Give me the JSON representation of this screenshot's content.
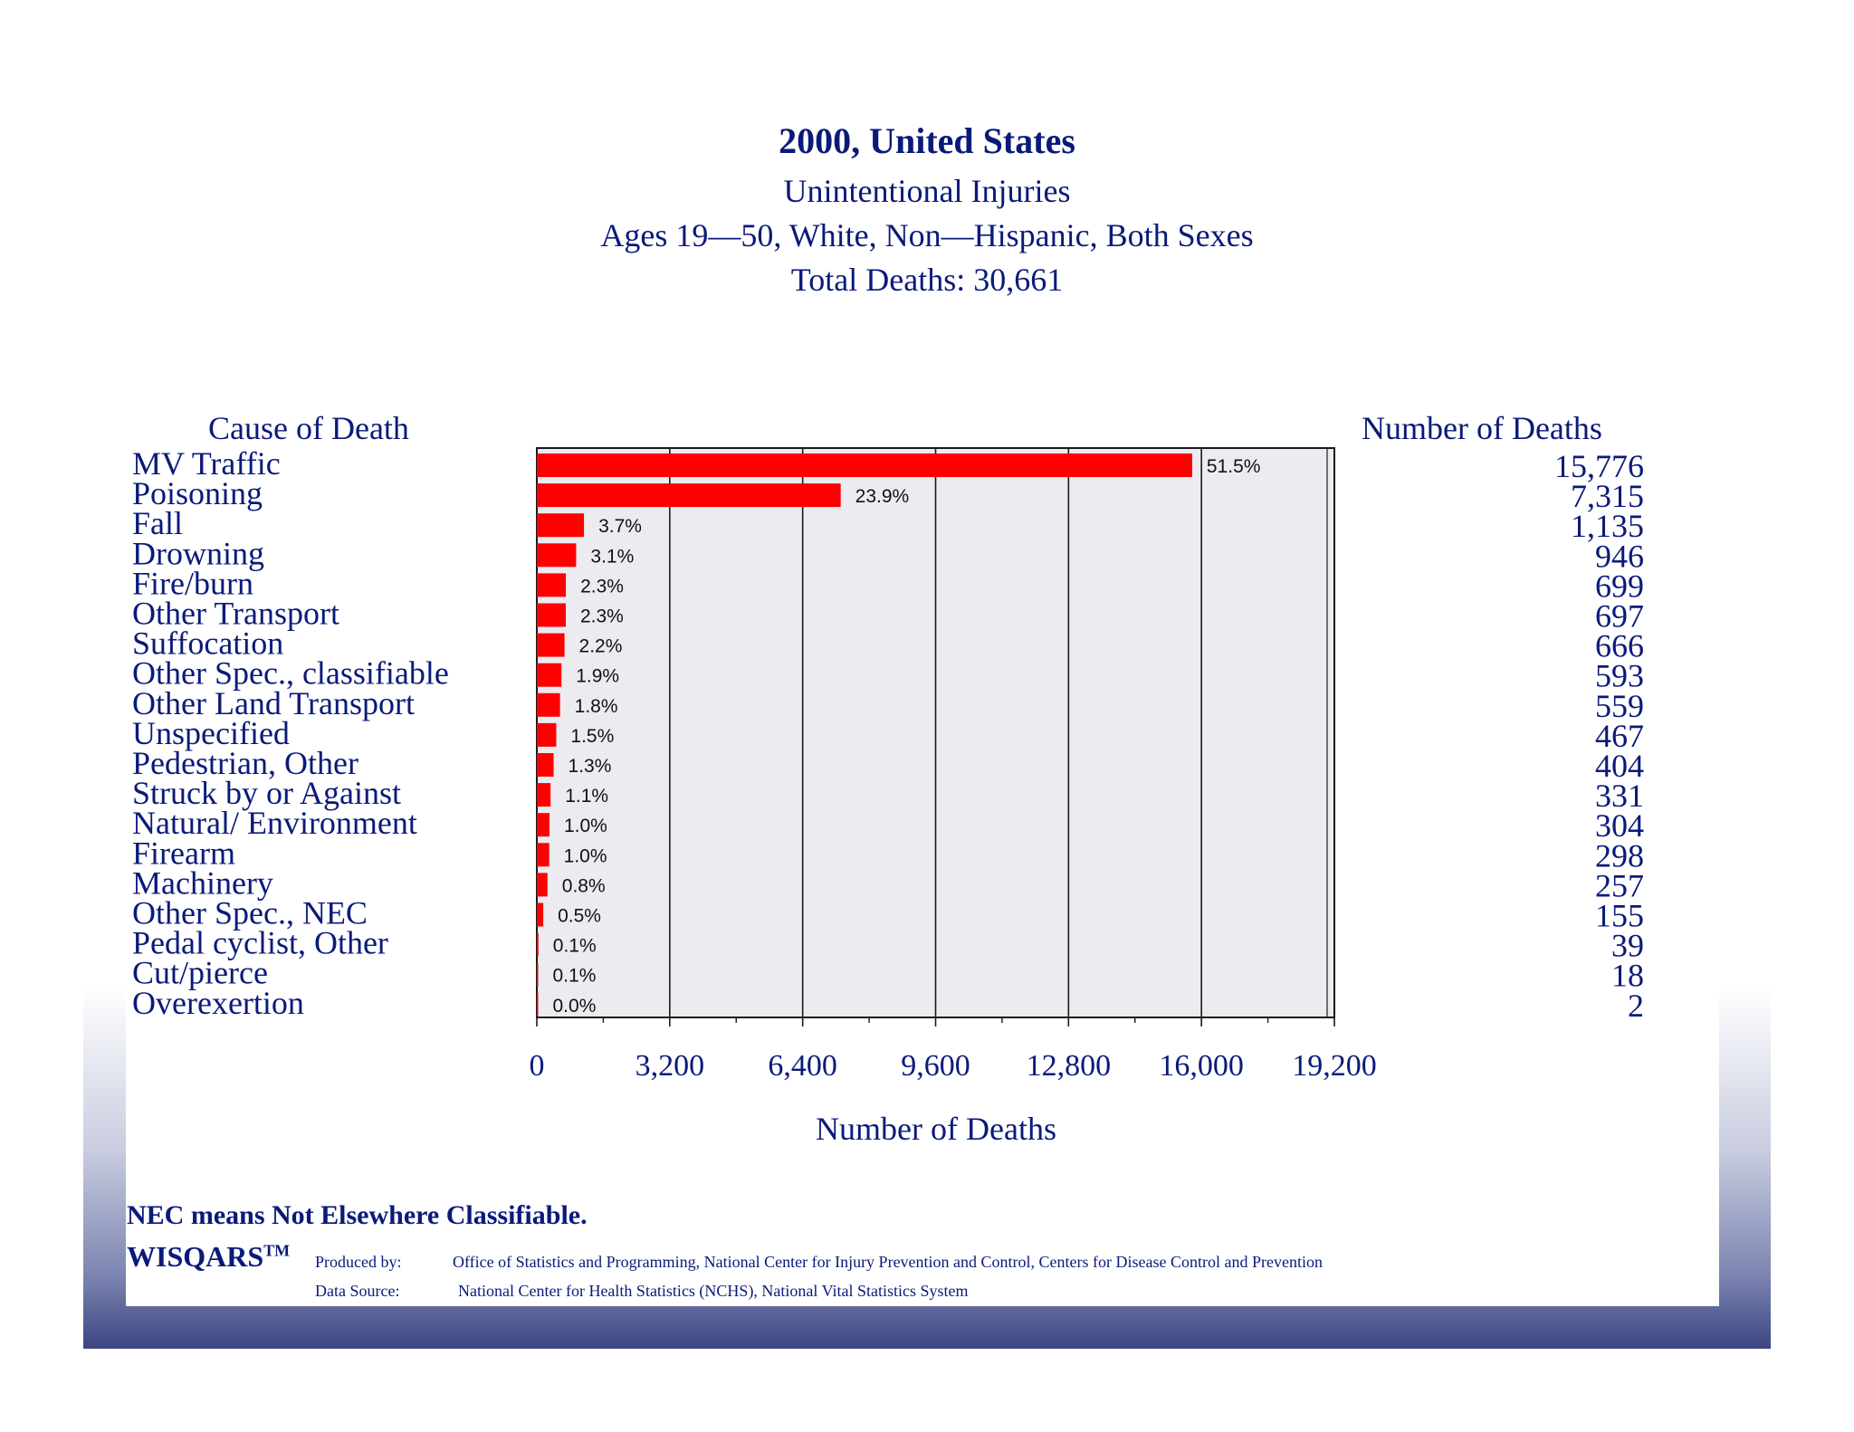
{
  "chart_data": {
    "type": "bar",
    "orientation": "horizontal",
    "title": "2000, United States",
    "subtitle_lines": [
      "Unintentional Injuries",
      "Ages 19—50, White, Non—Hispanic, Both Sexes",
      "Total Deaths: 30,661"
    ],
    "category_header": "Cause of Death",
    "value_header": "Number of Deaths",
    "xlabel": "Number of Deaths",
    "xlim": [
      0,
      19200
    ],
    "xticks": [
      0,
      3200,
      6400,
      9600,
      12800,
      16000,
      19200
    ],
    "xtick_labels": [
      "0",
      "3,200",
      "6,400",
      "9,600",
      "12,800",
      "16,000",
      "19,200"
    ],
    "grid": true,
    "bar_color": "#ff0000",
    "categories": [
      "MV Traffic",
      "Poisoning",
      "Fall",
      "Drowning",
      "Fire/burn",
      "Other Transport",
      "Suffocation",
      "Other Spec., classifiable",
      "Other Land Transport",
      "Unspecified",
      "Pedestrian, Other",
      "Struck by or Against",
      "Natural/ Environment",
      "Firearm",
      "Machinery",
      "Other Spec., NEC",
      "Pedal cyclist, Other",
      "Cut/pierce",
      "Overexertion"
    ],
    "values": [
      15776,
      7315,
      1135,
      946,
      699,
      697,
      666,
      593,
      559,
      467,
      404,
      331,
      304,
      298,
      257,
      155,
      39,
      18,
      2
    ],
    "value_labels": [
      "15,776",
      "7,315",
      "1,135",
      "946",
      "699",
      "697",
      "666",
      "593",
      "559",
      "467",
      "404",
      "331",
      "304",
      "298",
      "257",
      "155",
      "39",
      "18",
      "2"
    ],
    "percent_labels": [
      "51.5%",
      "23.9%",
      "3.7%",
      "3.1%",
      "2.3%",
      "2.3%",
      "2.2%",
      "1.9%",
      "1.8%",
      "1.5%",
      "1.3%",
      "1.1%",
      "1.0%",
      "1.0%",
      "0.8%",
      "0.5%",
      "0.1%",
      "0.1%",
      "0.0%"
    ]
  },
  "footer": {
    "note": "NEC means Not Elsewhere Classifiable.",
    "brand": "WISQARS",
    "brand_mark": "TM",
    "produced_label": "Produced by:",
    "produced_text": "Office of Statistics and Programming, National Center for Injury Prevention and Control,   Centers for Disease Control and Prevention",
    "source_label": "Data Source:",
    "source_text": "National Center for Health Statistics (NCHS), National Vital Statistics System"
  },
  "colors": {
    "text": "#0a1a7a",
    "bar": "#ff0000",
    "plot_background": "#ecebef",
    "grid": "#1a1a1a"
  }
}
